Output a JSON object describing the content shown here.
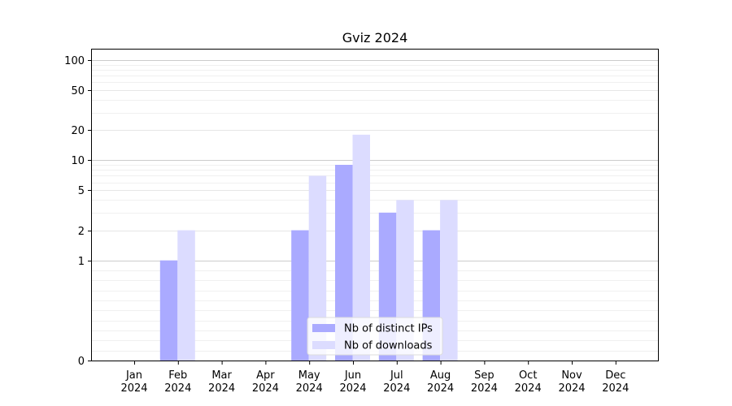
{
  "chart_data": {
    "type": "bar",
    "title": "Gviz 2024",
    "xlabel": "",
    "ylabel": "",
    "y_scale": "symlog",
    "ylim": [
      0,
      130
    ],
    "y_ticks": [
      0,
      1,
      2,
      5,
      10,
      20,
      50,
      100
    ],
    "categories": [
      "Jan\n2024",
      "Feb\n2024",
      "Mar\n2024",
      "Apr\n2024",
      "May\n2024",
      "Jun\n2024",
      "Jul\n2024",
      "Aug\n2024",
      "Sep\n2024",
      "Oct\n2024",
      "Nov\n2024",
      "Dec\n2024"
    ],
    "series": [
      {
        "name": "Nb of distinct IPs",
        "color": "#aaaaff",
        "values": [
          0,
          1,
          0,
          0,
          2,
          9,
          3,
          2,
          0,
          0,
          0,
          0
        ]
      },
      {
        "name": "Nb of downloads",
        "color": "#dcdcff",
        "values": [
          0,
          2,
          0,
          0,
          7,
          18,
          4,
          4,
          0,
          0,
          0,
          0
        ]
      }
    ],
    "grid": true,
    "legend_position": "lower-center"
  }
}
